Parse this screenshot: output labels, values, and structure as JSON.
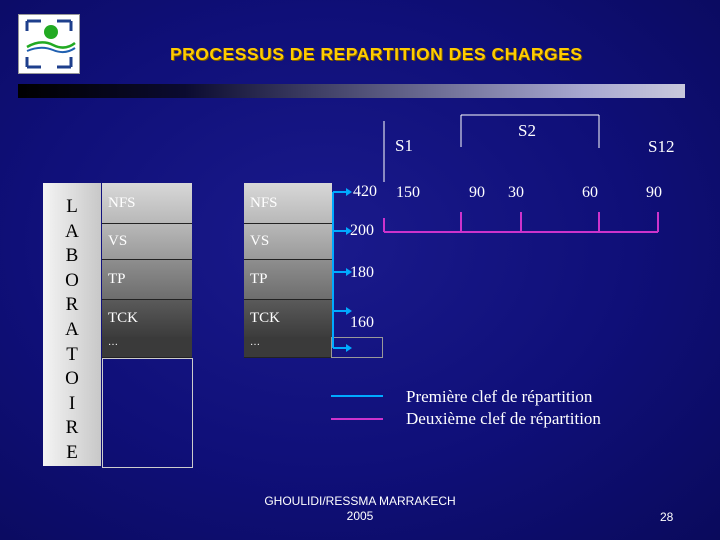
{
  "title": "PROCESSUS DE REPARTITION DES CHARGES",
  "sidebar_letters": [
    "L",
    "A",
    "B",
    "O",
    "R",
    "A",
    "T",
    "O",
    "I",
    "R",
    "E"
  ],
  "rows": [
    {
      "left": "NFS",
      "right": "NFS",
      "value": "420"
    },
    {
      "left": "VS",
      "right": "VS",
      "value": "200"
    },
    {
      "left": "TP",
      "right": "TP",
      "value": "180"
    },
    {
      "left": "TCK",
      "right": "TCK",
      "value": "160"
    },
    {
      "left": "…",
      "right": "…",
      "value": ""
    }
  ],
  "headers": {
    "s1": "S1",
    "s2": "S2",
    "s12": "S12"
  },
  "second_key_values": [
    "150",
    "90",
    "30",
    "60",
    "90"
  ],
  "legend": {
    "first": {
      "label": "Première clef de répartition",
      "color": "#00aaff"
    },
    "second": {
      "label": "Deuxième clef de répartition",
      "color": "#cc33cc"
    }
  },
  "footer": {
    "line1": "GHOULIDI/RESSMA MARRAKECH",
    "line2": "2005"
  },
  "page_number": "28"
}
